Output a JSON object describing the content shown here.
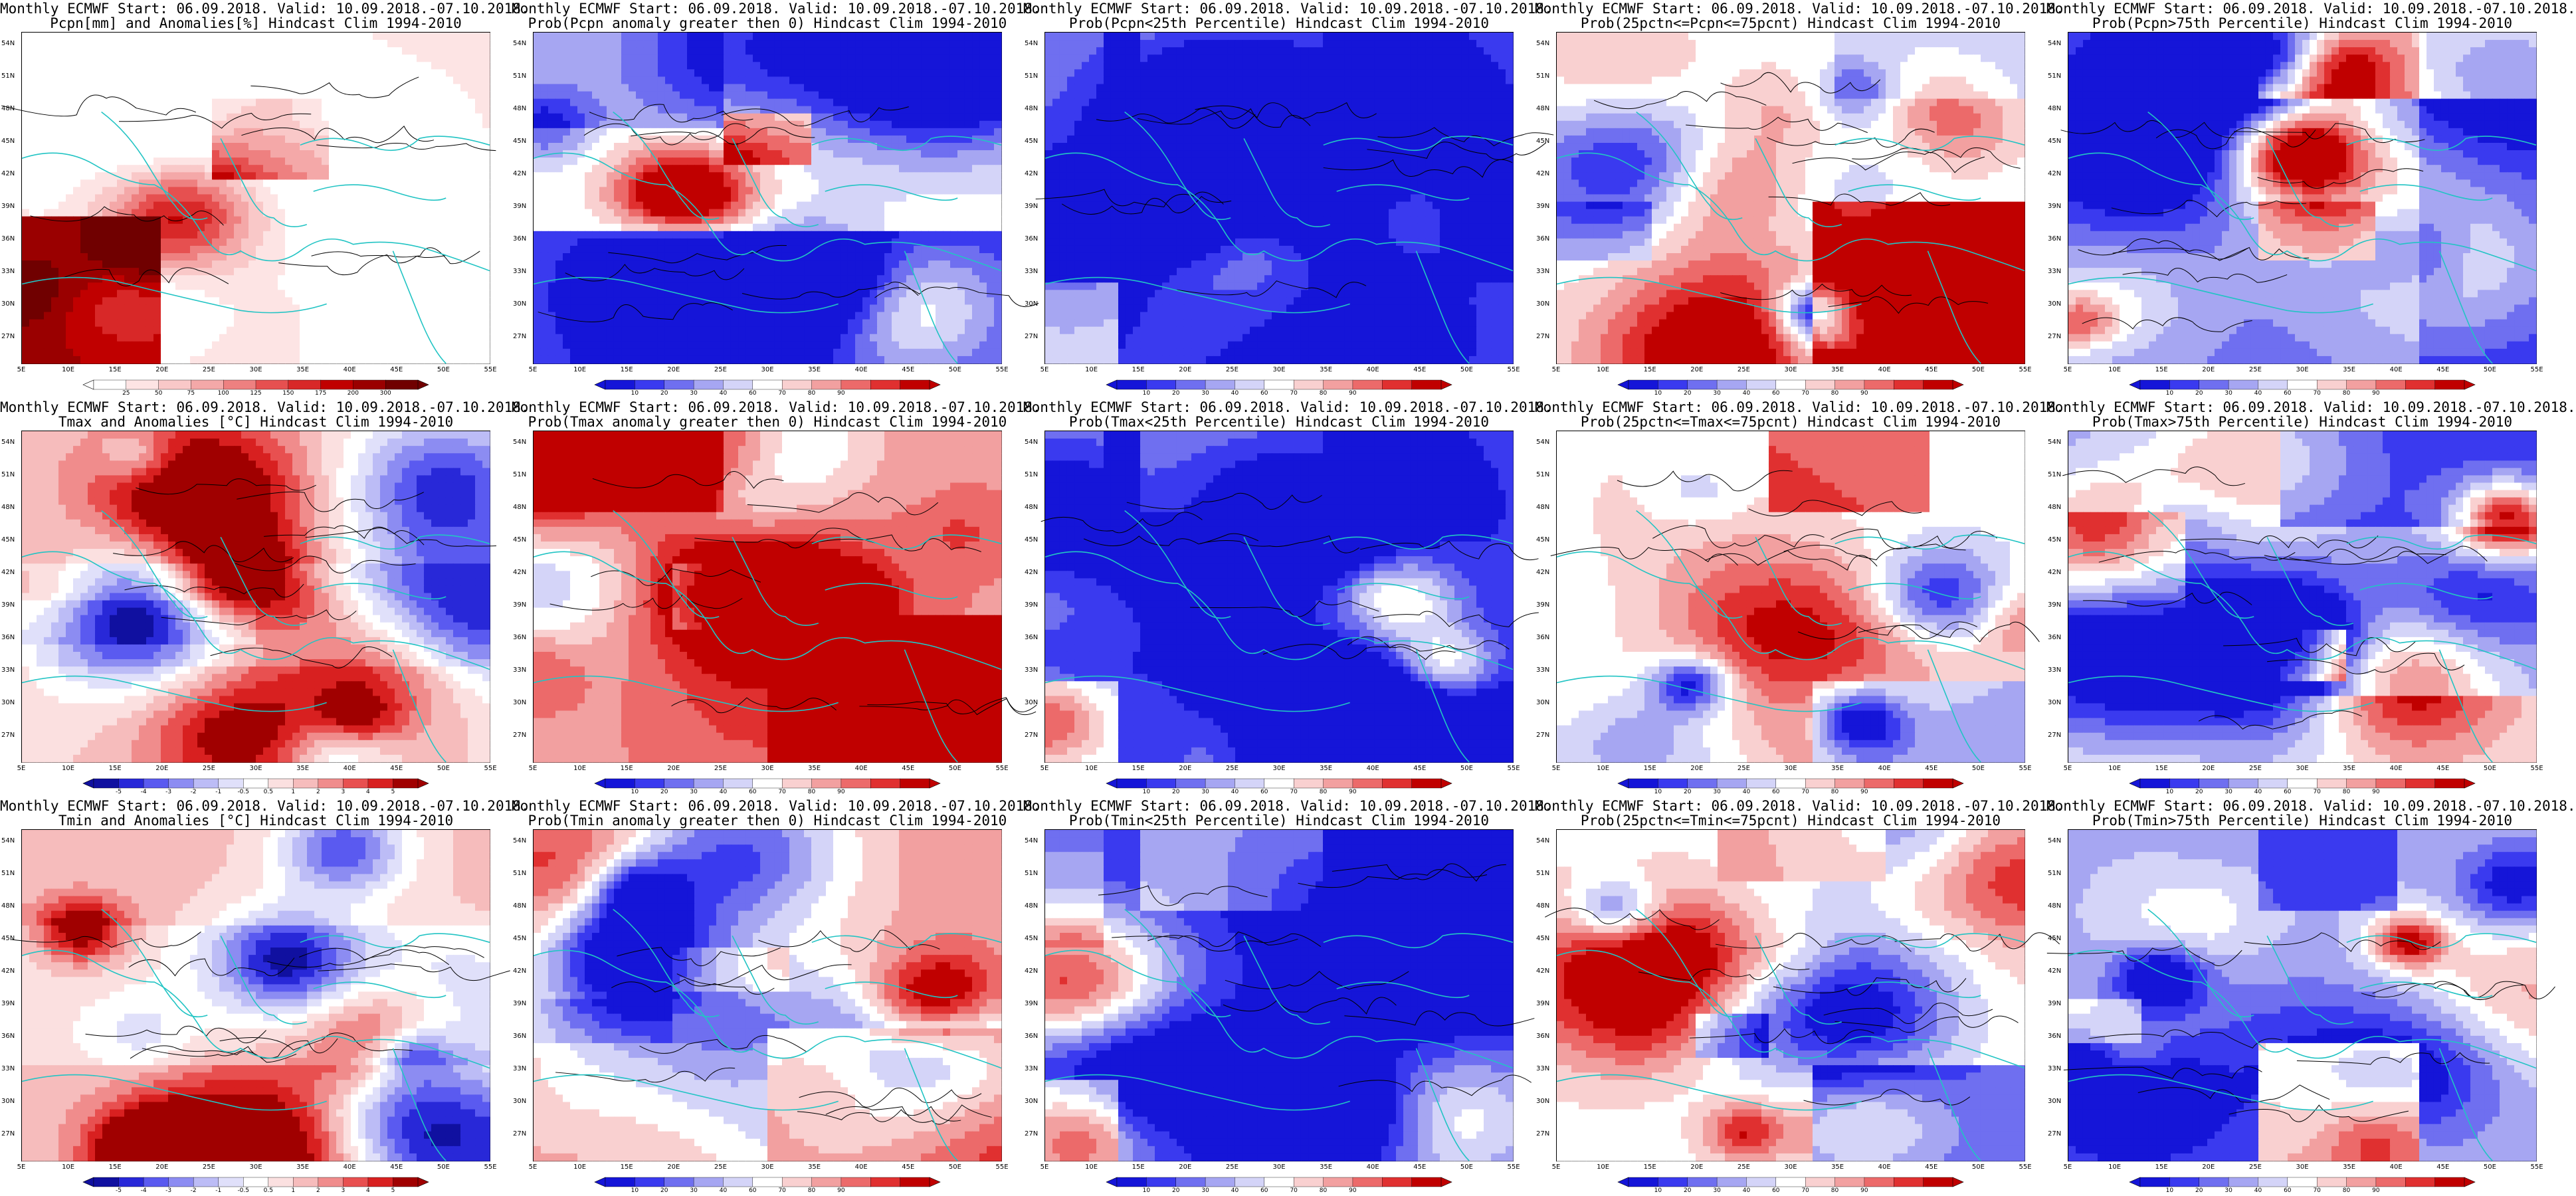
{
  "lat_labels": [
    "54N",
    "51N",
    "48N",
    "45N",
    "42N",
    "39N",
    "36N",
    "33N",
    "30N",
    "27N"
  ],
  "lon_labels": [
    "5E",
    "10E",
    "15E",
    "20E",
    "25E",
    "30E",
    "35E",
    "40E",
    "45E",
    "50E",
    "55E"
  ],
  "panels": [
    {
      "title1": "Monthly ECMWF Start: 06.09.2018. Valid: 10.09.2018.-07.10.2018.",
      "title2": "Pcpn[mm] and Anomalies[%] Hindcast Clim 1994-2010",
      "scale": "pcpn",
      "ticks": [
        "25",
        "50",
        "75",
        "100",
        "125",
        "150",
        "175",
        "200",
        "300"
      ],
      "pattern": "pcpn_anom"
    },
    {
      "title1": "Monthly ECMWF Start: 06.09.2018. Valid: 10.09.2018.-07.10.2018.",
      "title2": "Prob(Pcpn anomaly greater then 0) Hindcast Clim 1994-2010",
      "scale": "prob",
      "ticks": [
        "10",
        "20",
        "30",
        "40",
        "60",
        "70",
        "80",
        "90"
      ],
      "pattern": "pcpn_prob"
    },
    {
      "title1": "Monthly ECMWF Start: 06.09.2018. Valid: 10.09.2018.-07.10.2018.",
      "title2": "Prob(Pcpn<25th Percentile) Hindcast Clim 1994-2010",
      "scale": "prob",
      "ticks": [
        "10",
        "20",
        "30",
        "40",
        "60",
        "70",
        "80",
        "90"
      ],
      "pattern": "blue_dominant"
    },
    {
      "title1": "Monthly ECMWF Start: 06.09.2018. Valid: 10.09.2018.-07.10.2018.",
      "title2": "Prob(25pctn<=Pcpn<=75pcnt) Hindcast Clim 1994-2010",
      "scale": "prob",
      "ticks": [
        "10",
        "20",
        "30",
        "40",
        "60",
        "70",
        "80",
        "90"
      ],
      "pattern": "pcpn_mid"
    },
    {
      "title1": "Monthly ECMWF Start: 06.09.2018. Valid: 10.09.2018.-07.10.2018.",
      "title2": "Prob(Pcpn>75th Percentile) Hindcast Clim 1994-2010",
      "scale": "prob",
      "ticks": [
        "10",
        "20",
        "30",
        "40",
        "60",
        "70",
        "80",
        "90"
      ],
      "pattern": "pcpn_high"
    },
    {
      "title1": "Monthly ECMWF Start: 06.09.2018. Valid: 10.09.2018.-07.10.2018.",
      "title2": "Tmax and Anomalies [°C] Hindcast Clim 1994-2010",
      "scale": "anom",
      "ticks": [
        "-5",
        "-4",
        "-3",
        "-2",
        "-1",
        "-0.5",
        "0.5",
        "1",
        "2",
        "3",
        "4",
        "5"
      ],
      "pattern": "tmax_anom"
    },
    {
      "title1": "Monthly ECMWF Start: 06.09.2018. Valid: 10.09.2018.-07.10.2018.",
      "title2": "Prob(Tmax anomaly greater then 0) Hindcast Clim 1994-2010",
      "scale": "prob",
      "ticks": [
        "10",
        "20",
        "30",
        "40",
        "60",
        "70",
        "80",
        "90"
      ],
      "pattern": "tmax_prob"
    },
    {
      "title1": "Monthly ECMWF Start: 06.09.2018. Valid: 10.09.2018.-07.10.2018.",
      "title2": "Prob(Tmax<25th Percentile) Hindcast Clim 1994-2010",
      "scale": "prob",
      "ticks": [
        "10",
        "20",
        "30",
        "40",
        "60",
        "70",
        "80",
        "90"
      ],
      "pattern": "blue_dominant"
    },
    {
      "title1": "Monthly ECMWF Start: 06.09.2018. Valid: 10.09.2018.-07.10.2018.",
      "title2": "Prob(25pctn<=Tmax<=75pcnt) Hindcast Clim 1994-2010",
      "scale": "prob",
      "ticks": [
        "10",
        "20",
        "30",
        "40",
        "60",
        "70",
        "80",
        "90"
      ],
      "pattern": "tmax_mid"
    },
    {
      "title1": "Monthly ECMWF Start: 06.09.2018. Valid: 10.09.2018.-07.10.2018.",
      "title2": "Prob(Tmax>75th Percentile) Hindcast Clim 1994-2010",
      "scale": "prob",
      "ticks": [
        "10",
        "20",
        "30",
        "40",
        "60",
        "70",
        "80",
        "90"
      ],
      "pattern": "tmax_high"
    },
    {
      "title1": "Monthly ECMWF Start: 06.09.2018. Valid: 10.09.2018.-07.10.2018.",
      "title2": "Tmin and Anomalies [°C] Hindcast Clim 1994-2010",
      "scale": "anom",
      "ticks": [
        "-5",
        "-4",
        "-3",
        "-2",
        "-1",
        "-0.5",
        "0.5",
        "1",
        "2",
        "3",
        "4",
        "5"
      ],
      "pattern": "tmin_anom"
    },
    {
      "title1": "Monthly ECMWF Start: 06.09.2018. Valid: 10.09.2018.-07.10.2018.",
      "title2": "Prob(Tmin anomaly greater then 0) Hindcast Clim 1994-2010",
      "scale": "prob",
      "ticks": [
        "10",
        "20",
        "30",
        "40",
        "60",
        "70",
        "80",
        "90"
      ],
      "pattern": "tmin_prob"
    },
    {
      "title1": "Monthly ECMWF Start: 06.09.2018. Valid: 10.09.2018.-07.10.2018.",
      "title2": "Prob(Tmin<25th Percentile) Hindcast Clim 1994-2010",
      "scale": "prob",
      "ticks": [
        "10",
        "20",
        "30",
        "40",
        "60",
        "70",
        "80",
        "90"
      ],
      "pattern": "blue_dominant"
    },
    {
      "title1": "Monthly ECMWF Start: 06.09.2018. Valid: 10.09.2018.-07.10.2018.",
      "title2": "Prob(25pctn<=Tmin<=75pcnt) Hindcast Clim 1994-2010",
      "scale": "prob",
      "ticks": [
        "10",
        "20",
        "30",
        "40",
        "60",
        "70",
        "80",
        "90"
      ],
      "pattern": "tmin_mid"
    },
    {
      "title1": "Monthly ECMWF Start: 06.09.2018. Valid: 10.09.2018.-07.10.2018.",
      "title2": "Prob(Tmin>75th Percentile) Hindcast Clim 1994-2010",
      "scale": "prob",
      "ticks": [
        "10",
        "20",
        "30",
        "40",
        "60",
        "70",
        "80",
        "90"
      ],
      "pattern": "tmin_high"
    }
  ],
  "colors": {
    "prob_scale": [
      "#1515d8",
      "#3a3aef",
      "#6f6ff0",
      "#a6a6f2",
      "#d4d4f8",
      "#ffffff",
      "#f9d0d0",
      "#f2a0a0",
      "#ec6a6a",
      "#e03030",
      "#c00000"
    ],
    "anom_scale": [
      "#1010a0",
      "#2828d8",
      "#5a5af0",
      "#8c8cf2",
      "#bcbcf6",
      "#e0e0fa",
      "#ffffff",
      "#fbe0e0",
      "#f6bcbc",
      "#f08c8c",
      "#e85050",
      "#d82020",
      "#a00000"
    ],
    "pcpn_scale": [
      "#ffffff",
      "#fde4e4",
      "#f9c8c8",
      "#f4a8a8",
      "#ee8080",
      "#e65050",
      "#d82828",
      "#c00000",
      "#9a0000",
      "#700000"
    ],
    "coast": "#22c4c4",
    "contour": "#000000"
  }
}
